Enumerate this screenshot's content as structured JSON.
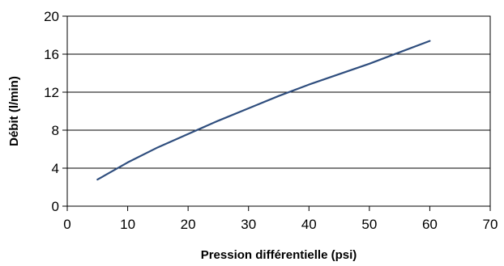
{
  "chart_data": {
    "type": "line",
    "title": "",
    "xlabel": "Pression différentielle (psi)",
    "ylabel": "Débit (l/min)",
    "xlim": [
      0,
      70
    ],
    "ylim": [
      0,
      20
    ],
    "xticks": [
      0,
      10,
      20,
      30,
      40,
      50,
      60,
      70
    ],
    "yticks": [
      0,
      4,
      8,
      12,
      16,
      20
    ],
    "grid": "horizontal",
    "legend": "none",
    "series": [
      {
        "color": "#2f4e7e",
        "x": [
          5,
          10,
          15,
          20,
          25,
          30,
          35,
          40,
          45,
          50,
          55,
          60
        ],
        "y": [
          2.8,
          4.6,
          6.2,
          7.6,
          9.0,
          10.3,
          11.6,
          12.8,
          13.9,
          15.0,
          16.2,
          17.4
        ]
      }
    ]
  }
}
